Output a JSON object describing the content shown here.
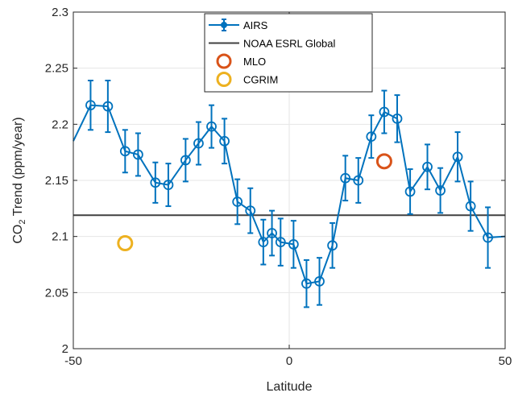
{
  "chart_data": {
    "type": "line",
    "xlabel": "Latitude",
    "ylabel_main": "CO",
    "ylabel_sub": "2",
    "ylabel_rest": " Trend (ppm/year)",
    "xlim": [
      -50,
      50
    ],
    "ylim": [
      2,
      2.3
    ],
    "xticks": [
      -50,
      0,
      50
    ],
    "xtick_labels": [
      "-50",
      "0",
      "50"
    ],
    "yticks": [
      2,
      2.05,
      2.1,
      2.15,
      2.2,
      2.25,
      2.3
    ],
    "ytick_labels": [
      "2",
      "2.05",
      "2.1",
      "2.15",
      "2.2",
      "2.25",
      "2.3"
    ],
    "grid": true,
    "legend_position": "top-center",
    "series": [
      {
        "name": "AIRS",
        "kind": "line-errorbar",
        "color": "#0072BD",
        "x": [
          -50,
          -46,
          -42,
          -38,
          -35,
          -31,
          -28,
          -24,
          -21,
          -18,
          -15,
          -12,
          -9,
          -6,
          -4,
          -2,
          1,
          4,
          7,
          10,
          13,
          16,
          19,
          22,
          25,
          28,
          32,
          35,
          39,
          42,
          46,
          50
        ],
        "y": [
          2.185,
          2.217,
          2.216,
          2.176,
          2.173,
          2.148,
          2.146,
          2.168,
          2.183,
          2.198,
          2.185,
          2.131,
          2.123,
          2.095,
          2.103,
          2.095,
          2.093,
          2.058,
          2.06,
          2.092,
          2.152,
          2.15,
          2.189,
          2.211,
          2.205,
          2.14,
          2.162,
          2.141,
          2.171,
          2.127,
          2.099,
          2.1
        ],
        "err": [
          null,
          0.022,
          0.023,
          0.019,
          0.019,
          0.018,
          0.019,
          0.019,
          0.019,
          0.019,
          0.02,
          0.02,
          0.02,
          0.02,
          0.02,
          0.021,
          0.021,
          0.021,
          0.021,
          0.02,
          0.02,
          0.02,
          0.019,
          0.019,
          0.021,
          0.02,
          0.02,
          0.02,
          0.022,
          0.022,
          0.027,
          null
        ],
        "marker_mask": [
          false,
          true,
          true,
          true,
          true,
          true,
          true,
          true,
          true,
          true,
          true,
          true,
          true,
          true,
          true,
          true,
          true,
          true,
          true,
          true,
          true,
          true,
          true,
          true,
          true,
          true,
          true,
          true,
          true,
          true,
          true,
          false
        ]
      },
      {
        "name": "NOAA ESRL Global",
        "kind": "hline",
        "color": "#404040",
        "y": 2.119
      },
      {
        "name": "MLO",
        "kind": "point",
        "color": "#D95319",
        "x": 22,
        "y": 2.167
      },
      {
        "name": "CGRIM",
        "kind": "point",
        "color": "#EDB120",
        "x": -38,
        "y": 2.094
      }
    ]
  }
}
